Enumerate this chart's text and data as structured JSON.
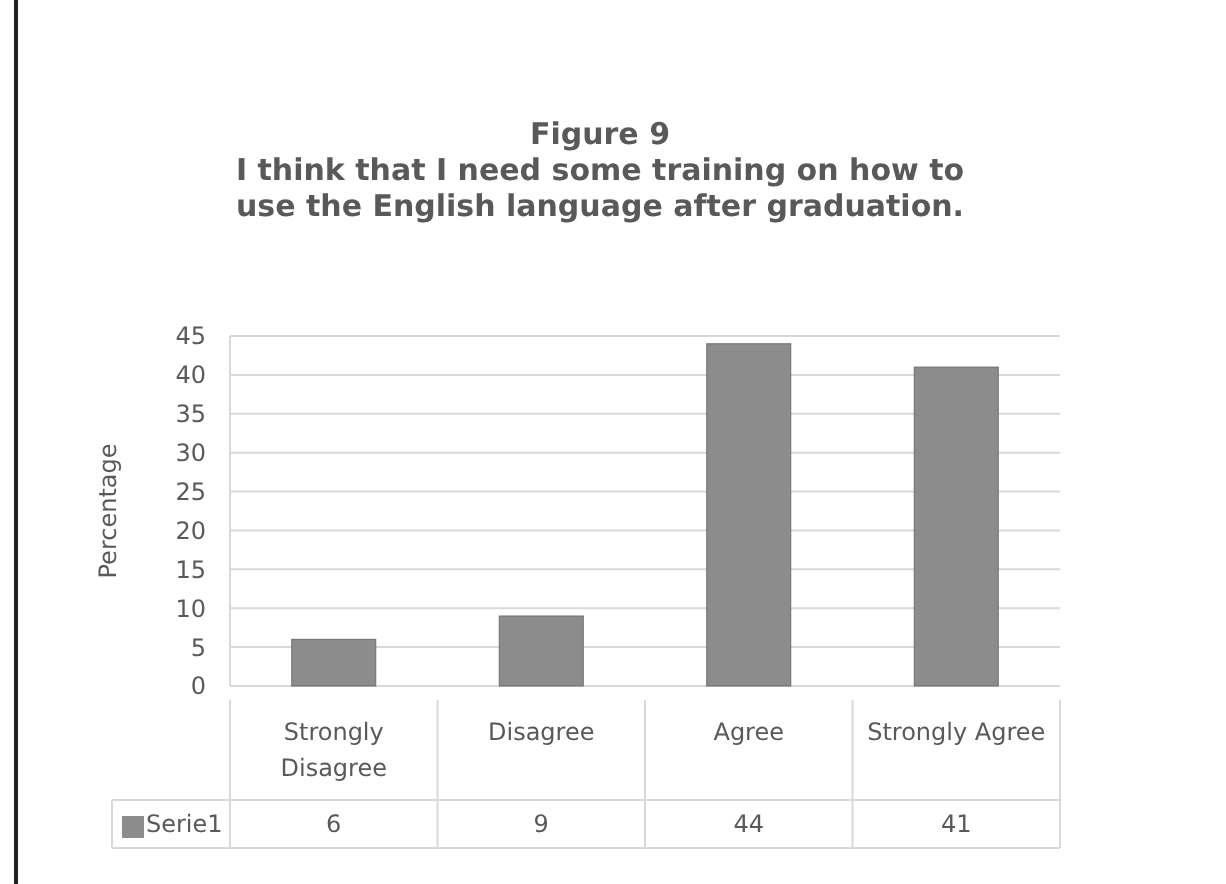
{
  "chart_data": {
    "type": "bar",
    "title": "Figure 9",
    "subtitle": "I think that I need some training on how to use the English language after graduation.",
    "ylabel": "Percentage",
    "categories": [
      "Strongly Disagree",
      "Disagree",
      "Agree",
      "Strongly Agree"
    ],
    "series": [
      {
        "name": "Serie1",
        "color": "#8c8c8c",
        "values": [
          6,
          9,
          44,
          41
        ]
      }
    ],
    "ylim": [
      0,
      45
    ],
    "yticks": [
      0,
      5,
      10,
      15,
      20,
      25,
      30,
      35,
      40,
      45
    ],
    "grid": "y",
    "data_labels": true,
    "legend": "bottom"
  }
}
